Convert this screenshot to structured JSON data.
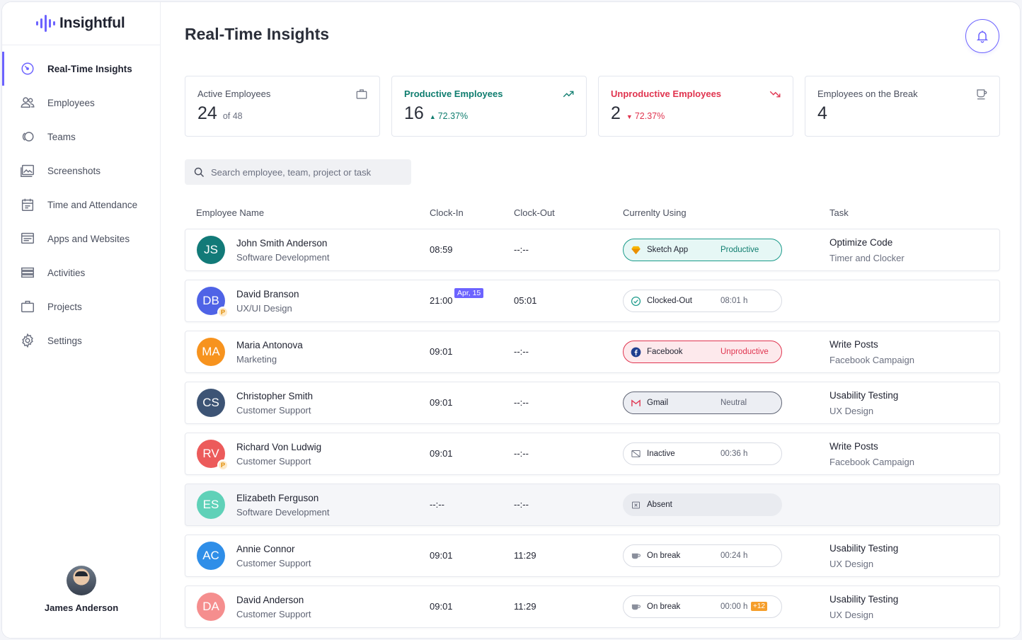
{
  "app": {
    "name": "Insightful"
  },
  "sidebar": {
    "items": [
      {
        "label": "Real-Time Insights",
        "icon": "realtime-icon",
        "active": true
      },
      {
        "label": "Employees",
        "icon": "employees-icon"
      },
      {
        "label": "Teams",
        "icon": "teams-icon"
      },
      {
        "label": "Screenshots",
        "icon": "screenshots-icon"
      },
      {
        "label": "Time and Attendance",
        "icon": "calendar-icon"
      },
      {
        "label": "Apps and Websites",
        "icon": "apps-icon"
      },
      {
        "label": "Activities",
        "icon": "activities-icon"
      },
      {
        "label": "Projects",
        "icon": "briefcase-icon"
      },
      {
        "label": "Settings",
        "icon": "gear-icon"
      }
    ],
    "user": {
      "name": "James Anderson"
    }
  },
  "header": {
    "title": "Real-Time Insights"
  },
  "stats": {
    "active": {
      "title": "Active Employees",
      "value": "24",
      "sub": "of 48"
    },
    "productive": {
      "title": "Productive Employees",
      "value": "16",
      "change": "72.37%"
    },
    "unproductive": {
      "title": "Unproductive Employees",
      "value": "2",
      "change": "72.37%"
    },
    "break": {
      "title": "Employees on the Break",
      "value": "4"
    }
  },
  "search": {
    "placeholder": "Search employee, team, project or task",
    "value": ""
  },
  "table": {
    "headers": {
      "name": "Employee Name",
      "clock_in": "Clock-In",
      "clock_out": "Clock-Out",
      "using": "Currenlty Using",
      "task": "Task"
    },
    "rows": [
      {
        "initials": "JS",
        "color": "#127a78",
        "name": "John Smith Anderson",
        "team": "Software Development",
        "clock_in": "08:59",
        "clock_out": "--:--",
        "using": "Sketch App",
        "status": "Productive",
        "task": "Optimize Code",
        "project": "Timer and Clocker"
      },
      {
        "initials": "DB",
        "color": "#4f63e6",
        "name": "David Branson",
        "team": "UX/UI Design",
        "clock_in": "21:00",
        "date_tag": "Apr, 15",
        "clock_out": "05:01",
        "using": "Clocked-Out",
        "status": "08:01 h",
        "task": "",
        "project": ""
      },
      {
        "initials": "MA",
        "color": "#f7931e",
        "name": "Maria Antonova",
        "team": "Marketing",
        "clock_in": "09:01",
        "clock_out": "--:--",
        "using": "Facebook",
        "status": "Unproductive",
        "task": "Write Posts",
        "project": "Facebook Campaign"
      },
      {
        "initials": "CS",
        "color": "#3d5475",
        "name": "Christopher Smith",
        "team": "Customer Support",
        "clock_in": "09:01",
        "clock_out": "--:--",
        "using": "Gmail",
        "status": "Neutral",
        "task": "Usability Testing",
        "project": "UX Design"
      },
      {
        "initials": "RV",
        "color": "#ec5b5b",
        "name": "Richard Von Ludwig",
        "team": "Customer Support",
        "clock_in": "09:01",
        "clock_out": "--:--",
        "using": "Inactive",
        "status": "00:36 h",
        "task": "Write Posts",
        "project": "Facebook Campaign"
      },
      {
        "initials": "ES",
        "color": "#5fd1b8",
        "name": "Elizabeth Ferguson",
        "team": "Software Development",
        "clock_in": "--:--",
        "clock_out": "--:--",
        "using": "Absent",
        "status": "",
        "task": "",
        "project": ""
      },
      {
        "initials": "AC",
        "color": "#2f8ee8",
        "name": "Annie Connor",
        "team": "Customer Support",
        "clock_in": "09:01",
        "clock_out": "11:29",
        "using": "On break",
        "status": "00:24 h",
        "task": "Usability Testing",
        "project": "UX Design"
      },
      {
        "initials": "DA",
        "color": "#f58e8e",
        "name": "David Anderson",
        "team": "Customer Support",
        "clock_in": "09:01",
        "clock_out": "11:29",
        "using": "On break",
        "status": "00:00 h",
        "plus": "+12",
        "task": "Usability Testing",
        "project": "UX Design"
      }
    ],
    "badge_letter": "P"
  }
}
